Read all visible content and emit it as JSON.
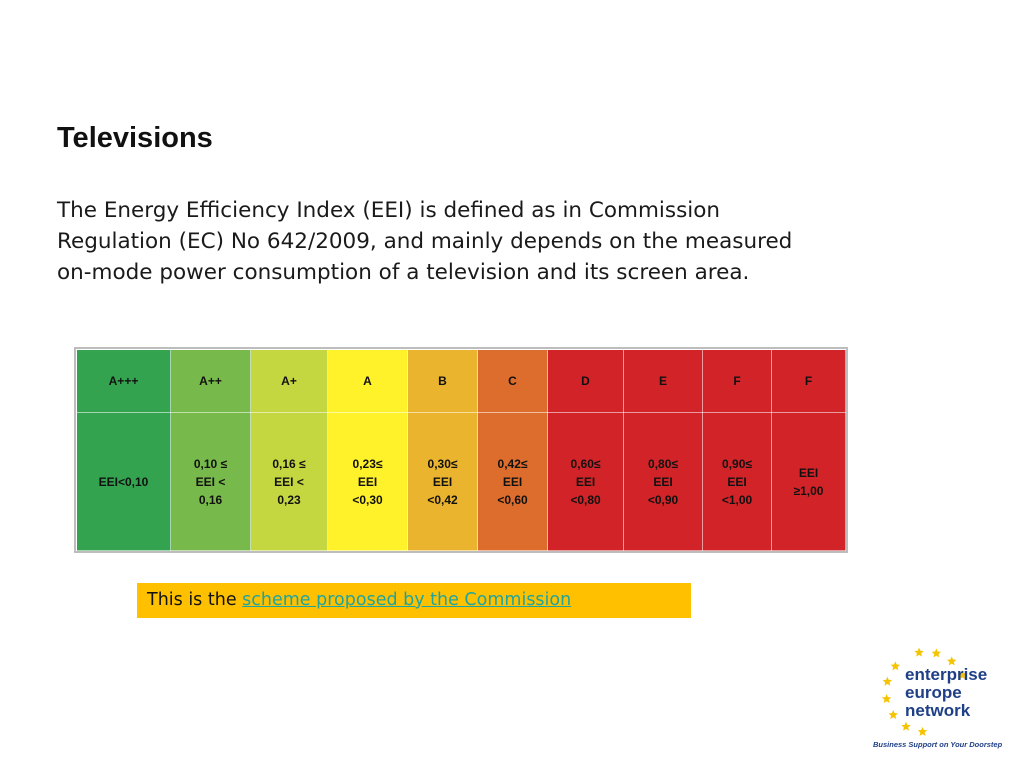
{
  "title": "Televisions",
  "paragraph": {
    "line1": "The Energy Efficiency Index (EEI) is defined as in Commission",
    "line2": "Regulation (EC) No 642/2009, and mainly depends on the measured",
    "line3": "on-mode power  consumption of a television and its screen area."
  },
  "table": {
    "columns": [
      {
        "class": "A+++",
        "lines": [
          "EEI<0,10"
        ],
        "color": "#34a350"
      },
      {
        "class": "A++",
        "lines": [
          "0,10 ≤",
          "EEI       <",
          "0,16"
        ],
        "color": "#77b94a"
      },
      {
        "class": "A+",
        "lines": [
          "0,16 ≤",
          "EEI      <",
          "0,23"
        ],
        "color": "#c4d640"
      },
      {
        "class": "A",
        "lines": [
          "0,23≤",
          "EEI",
          "<0,30"
        ],
        "color": "#fff22a"
      },
      {
        "class": "B",
        "lines": [
          "0,30≤",
          "EEI",
          "<0,42"
        ],
        "color": "#eab42e"
      },
      {
        "class": "C",
        "lines": [
          "0,42≤",
          "EEI",
          "<0,60"
        ],
        "color": "#dd6d2d"
      },
      {
        "class": "D",
        "lines": [
          "0,60≤",
          "EEI",
          "<0,80"
        ],
        "color": "#d22428"
      },
      {
        "class": "E",
        "lines": [
          "0,80≤",
          "EEI",
          "<0,90"
        ],
        "color": "#d22428"
      },
      {
        "class": "F",
        "lines": [
          "0,90≤",
          "EEI",
          "<1,00"
        ],
        "color": "#d22428"
      },
      {
        "class": "F",
        "lines": [
          "EEI",
          "≥1,00"
        ],
        "color": "#d22428"
      }
    ]
  },
  "callout": {
    "prefix": "This is the ",
    "link_text": "scheme proposed by the Commission",
    "background": "#ffc000",
    "link_color": "#1ea5a0"
  },
  "logo": {
    "line1": "enterprise",
    "line2": "europe",
    "line3": "network",
    "tagline": "Business Support on Your Doorstep",
    "star_color": "#f5c400",
    "text_color": "#1f3f86"
  }
}
